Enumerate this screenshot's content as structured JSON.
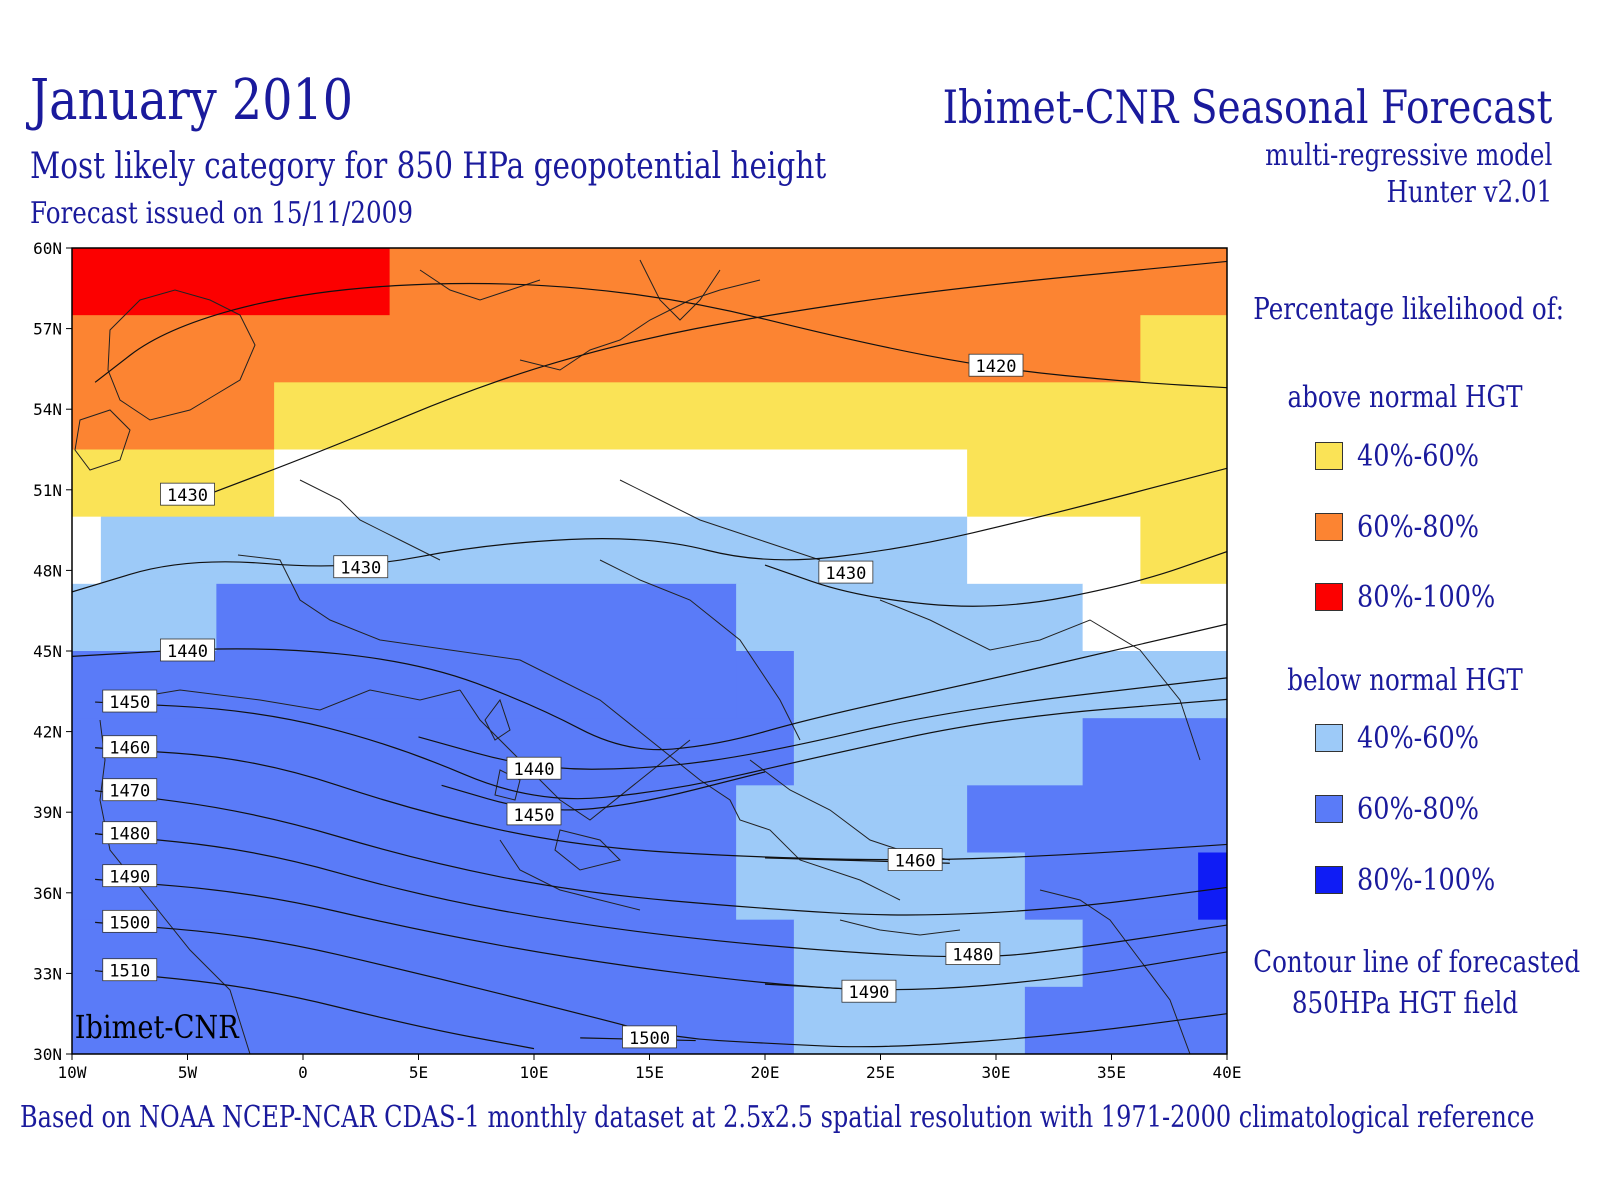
{
  "header": {
    "title": "January 2010",
    "subtitle": "Most likely category for 850 HPa geopotential height",
    "issued": "Forecast issued on 15/11/2009",
    "org_title": "Ibimet-CNR Seasonal Forecast",
    "model": "multi-regressive model",
    "version": "Hunter v2.01"
  },
  "map": {
    "watermark": "Ibimet-CNR",
    "lat_ticks": [
      "60N",
      "57N",
      "54N",
      "51N",
      "48N",
      "45N",
      "42N",
      "39N",
      "36N",
      "33N",
      "30N"
    ],
    "lon_ticks": [
      "10W",
      "5W",
      "0",
      "5E",
      "10E",
      "15E",
      "20E",
      "25E",
      "30E",
      "35E",
      "40E"
    ],
    "extent": {
      "lon": [
        -10,
        40
      ],
      "lat": [
        30,
        60
      ]
    },
    "category_colors": {
      "above_40_60": "#fae356",
      "above_60_80": "#fc8432",
      "above_80_100": "#fc0000",
      "below_40_60": "#9dcaf8",
      "below_60_80": "#5a7bf8",
      "below_80_100": "#0f1cf5",
      "none": "#ffffff"
    },
    "category_rows": [
      {
        "lat": [
          57.5,
          60
        ],
        "cells": [
          [
            -10,
            3.75,
            "above_80_100"
          ],
          [
            3.75,
            40,
            "above_60_80"
          ]
        ]
      },
      {
        "lat": [
          55,
          57.5
        ],
        "cells": [
          [
            -10,
            36.25,
            "above_60_80"
          ],
          [
            36.25,
            40,
            "above_40_60"
          ]
        ]
      },
      {
        "lat": [
          52.5,
          55
        ],
        "cells": [
          [
            -10,
            -1.25,
            "above_60_80"
          ],
          [
            -1.25,
            40,
            "above_40_60"
          ]
        ]
      },
      {
        "lat": [
          50,
          52.5
        ],
        "cells": [
          [
            -10,
            -1.25,
            "above_40_60"
          ],
          [
            -1.25,
            28.75,
            "none"
          ],
          [
            28.75,
            40,
            "above_40_60"
          ]
        ]
      },
      {
        "lat": [
          47.5,
          50
        ],
        "cells": [
          [
            -10,
            -8.75,
            "none"
          ],
          [
            -8.75,
            28.75,
            "below_40_60"
          ],
          [
            28.75,
            36.25,
            "none"
          ],
          [
            36.25,
            40,
            "above_40_60"
          ]
        ]
      },
      {
        "lat": [
          45,
          47.5
        ],
        "cells": [
          [
            -10,
            -3.75,
            "below_40_60"
          ],
          [
            -3.75,
            18.75,
            "below_60_80"
          ],
          [
            18.75,
            33.75,
            "below_40_60"
          ],
          [
            33.75,
            40,
            "none"
          ]
        ]
      },
      {
        "lat": [
          42.5,
          45
        ],
        "cells": [
          [
            -10,
            18.75,
            "below_60_80"
          ],
          [
            18.75,
            21.25,
            "below_60_80"
          ],
          [
            21.25,
            40,
            "below_40_60"
          ]
        ]
      },
      {
        "lat": [
          40,
          42.5
        ],
        "cells": [
          [
            -10,
            21.25,
            "below_60_80"
          ],
          [
            21.25,
            33.75,
            "below_40_60"
          ],
          [
            33.75,
            40,
            "below_60_80"
          ]
        ]
      },
      {
        "lat": [
          37.5,
          40
        ],
        "cells": [
          [
            -10,
            18.75,
            "below_60_80"
          ],
          [
            18.75,
            28.75,
            "below_40_60"
          ],
          [
            28.75,
            40,
            "below_60_80"
          ]
        ]
      },
      {
        "lat": [
          35,
          37.5
        ],
        "cells": [
          [
            -10,
            18.75,
            "below_60_80"
          ],
          [
            18.75,
            31.25,
            "below_40_60"
          ],
          [
            31.25,
            38.75,
            "below_60_80"
          ],
          [
            38.75,
            40,
            "below_80_100"
          ]
        ]
      },
      {
        "lat": [
          32.5,
          35
        ],
        "cells": [
          [
            -10,
            21.25,
            "below_60_80"
          ],
          [
            21.25,
            33.75,
            "below_40_60"
          ],
          [
            33.75,
            40,
            "below_60_80"
          ]
        ]
      },
      {
        "lat": [
          30,
          32.5
        ],
        "cells": [
          [
            -10,
            21.25,
            "below_60_80"
          ],
          [
            21.25,
            31.25,
            "below_40_60"
          ],
          [
            31.25,
            40,
            "below_60_80"
          ]
        ]
      }
    ],
    "contours": [
      {
        "label": "1420",
        "points": [
          [
            -9,
            55
          ],
          [
            -6,
            57
          ],
          [
            0,
            58.4
          ],
          [
            8,
            58.8
          ],
          [
            16,
            58.2
          ],
          [
            24,
            56.5
          ],
          [
            30,
            55.5
          ],
          [
            36,
            55
          ],
          [
            40,
            54.8
          ]
        ],
        "label_at": [
          30,
          55.6
        ]
      },
      {
        "label": "1430",
        "points": [
          [
            -10,
            47.2
          ],
          [
            -5,
            48.5
          ],
          [
            2,
            48
          ],
          [
            8,
            49
          ],
          [
            15,
            49.3
          ],
          [
            20,
            48.2
          ],
          [
            26,
            48.8
          ],
          [
            32,
            50
          ],
          [
            40,
            51.8
          ]
        ],
        "label_at": [
          2.5,
          48.1
        ]
      },
      {
        "label": "1430",
        "points": [
          [
            -4.5,
            50.7
          ],
          [
            1,
            52.5
          ],
          [
            8,
            55
          ],
          [
            14,
            56.5
          ],
          [
            20,
            57.5
          ],
          [
            28,
            58.5
          ],
          [
            40,
            59.5
          ]
        ],
        "label_at": [
          -5,
          50.8
        ]
      },
      {
        "label": "1430",
        "points": [
          [
            20,
            48.2
          ],
          [
            24,
            47
          ],
          [
            30,
            46.5
          ],
          [
            36,
            47.5
          ],
          [
            40,
            48.7
          ]
        ],
        "label_at": [
          23.5,
          47.9
        ]
      },
      {
        "label": "1440",
        "points": [
          [
            -10,
            44.8
          ],
          [
            -2,
            45.2
          ],
          [
            5,
            44.6
          ],
          [
            10,
            43
          ],
          [
            14,
            41.2
          ],
          [
            18,
            41.5
          ],
          [
            22,
            42.5
          ],
          [
            30,
            44
          ],
          [
            36,
            45.2
          ],
          [
            40,
            46
          ]
        ],
        "label_at": [
          -5,
          45
        ]
      },
      {
        "label": "1440",
        "points": [
          [
            5,
            41.8
          ],
          [
            10,
            40.6
          ],
          [
            15,
            40.6
          ],
          [
            20,
            41.2
          ],
          [
            28,
            42.8
          ],
          [
            40,
            44
          ]
        ],
        "label_at": [
          10,
          40.6
        ]
      },
      {
        "label": "1450",
        "points": [
          [
            -9,
            43.1
          ],
          [
            -2,
            42.8
          ],
          [
            4,
            41.5
          ],
          [
            10,
            39.3
          ],
          [
            16,
            39.8
          ],
          [
            22,
            41
          ],
          [
            30,
            42.5
          ],
          [
            40,
            43.2
          ]
        ],
        "label_at": [
          -7.5,
          43.1
        ]
      },
      {
        "label": "1450",
        "points": [
          [
            6,
            40
          ],
          [
            10,
            39
          ],
          [
            14,
            39.2
          ],
          [
            20,
            40.5
          ]
        ],
        "label_at": [
          10,
          38.9
        ]
      },
      {
        "label": "1460",
        "points": [
          [
            -9,
            41.4
          ],
          [
            -2,
            41
          ],
          [
            5,
            39
          ],
          [
            12,
            37.7
          ],
          [
            20,
            37.3
          ],
          [
            27,
            37.2
          ],
          [
            33,
            37.4
          ],
          [
            40,
            37.8
          ]
        ],
        "label_at": [
          -7.5,
          41.4
        ]
      },
      {
        "label": "1460",
        "points": [
          [
            20,
            37.3
          ],
          [
            24,
            37.2
          ],
          [
            28,
            37.1
          ]
        ],
        "label_at": [
          26.5,
          37.2
        ]
      },
      {
        "label": "1470",
        "points": [
          [
            -9,
            39.8
          ],
          [
            -2,
            39
          ],
          [
            5,
            37.2
          ],
          [
            12,
            36
          ],
          [
            20,
            35.4
          ],
          [
            26,
            35.1
          ],
          [
            33,
            35.4
          ],
          [
            40,
            36.2
          ]
        ],
        "label_at": [
          -7.5,
          39.8
        ]
      },
      {
        "label": "1480",
        "points": [
          [
            -9,
            38.2
          ],
          [
            -2,
            37.6
          ],
          [
            5,
            35.9
          ],
          [
            12,
            34.8
          ],
          [
            20,
            34
          ],
          [
            29,
            33.5
          ],
          [
            34,
            34
          ],
          [
            40,
            34.8
          ]
        ],
        "label_at": [
          29,
          33.7
        ]
      },
      {
        "label": "1480",
        "points": [
          [
            -9,
            38.2
          ],
          [
            -8,
            38.1
          ]
        ],
        "label_at": [
          -7.5,
          38.2
        ]
      },
      {
        "label": "1490",
        "points": [
          [
            -9,
            36.5
          ],
          [
            -2,
            36
          ],
          [
            5,
            34.6
          ],
          [
            12,
            33.5
          ],
          [
            20,
            32.6
          ],
          [
            26,
            32.3
          ],
          [
            33,
            32.8
          ],
          [
            40,
            33.8
          ]
        ],
        "label_at": [
          -7.5,
          36.6
        ]
      },
      {
        "label": "1490",
        "points": [
          [
            20,
            32.6
          ],
          [
            24,
            32.4
          ]
        ],
        "label_at": [
          24.5,
          32.3
        ]
      },
      {
        "label": "1500",
        "points": [
          [
            -9,
            34.9
          ],
          [
            -2,
            34.4
          ],
          [
            5,
            33
          ],
          [
            12,
            31.5
          ],
          [
            16,
            30.6
          ],
          [
            20,
            30.4
          ],
          [
            25,
            30.2
          ],
          [
            33,
            30.7
          ],
          [
            40,
            31.5
          ]
        ],
        "label_at": [
          -7.5,
          34.9
        ]
      },
      {
        "label": "1500",
        "points": [
          [
            12,
            30.6
          ],
          [
            17,
            30.5
          ]
        ],
        "label_at": [
          15,
          30.6
        ]
      },
      {
        "label": "1510",
        "points": [
          [
            -9,
            33.1
          ],
          [
            -2,
            32.5
          ],
          [
            5,
            31
          ],
          [
            10,
            30.2
          ]
        ],
        "label_at": [
          -7.5,
          33.1
        ]
      }
    ]
  },
  "legend": {
    "heading": "Percentage likelihood of:",
    "above_heading": "above normal HGT",
    "below_heading": "below normal HGT",
    "above": [
      {
        "label": "40%-60%",
        "color": "#fae356"
      },
      {
        "label": "60%-80%",
        "color": "#fc8432"
      },
      {
        "label": "80%-100%",
        "color": "#fc0000"
      }
    ],
    "below": [
      {
        "label": "40%-60%",
        "color": "#9dcaf8"
      },
      {
        "label": "60%-80%",
        "color": "#5a7bf8"
      },
      {
        "label": "80%-100%",
        "color": "#0f1cf5"
      }
    ],
    "contour_note": "Contour line of forecasted",
    "contour_note2": "850HPa HGT field"
  },
  "footer": "Based on NOAA NCEP-NCAR CDAS-1 monthly dataset at 2.5x2.5 spatial resolution with 1971-2000 climatological reference"
}
